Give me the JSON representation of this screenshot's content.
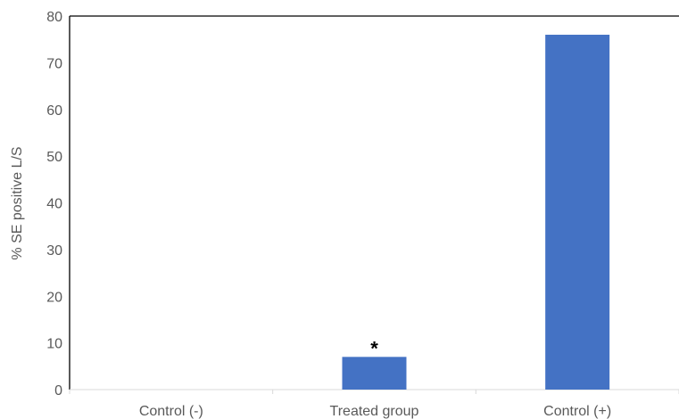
{
  "chart_data": {
    "type": "bar",
    "categories": [
      "Control (-)",
      "Treated group",
      "Control (+)"
    ],
    "values": [
      0,
      7,
      76
    ],
    "title": "",
    "xlabel": "",
    "ylabel": "% SE positive L/S",
    "ylim": [
      0,
      80
    ],
    "yticks": [
      "0",
      "10",
      "20",
      "30",
      "40",
      "50",
      "60",
      "70",
      "80"
    ],
    "grid": false,
    "legend": "none",
    "bar_color": "#4472C4",
    "annotations": [
      {
        "category": "Treated group",
        "text": "*"
      }
    ]
  }
}
